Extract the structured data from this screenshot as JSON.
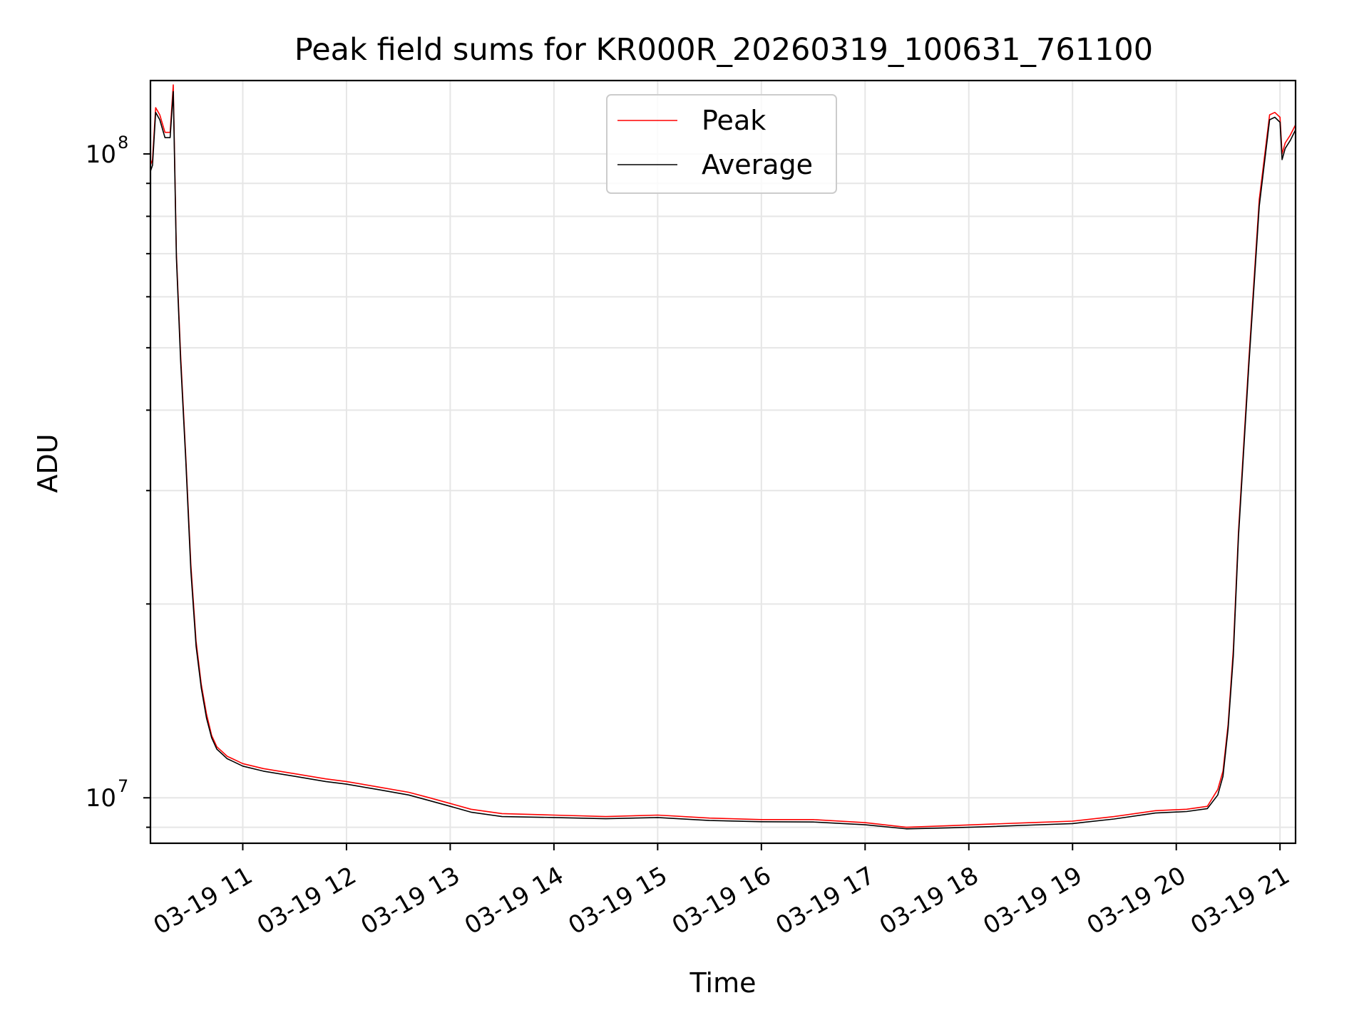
{
  "chart_data": {
    "type": "line",
    "title": "Peak field sums for KR000R_20260319_100631_761100",
    "xlabel": "Time",
    "ylabel": "ADU",
    "yscale": "log",
    "xlim_hours": [
      10.11,
      21.15
    ],
    "ylim": [
      8500000,
      130000000
    ],
    "grid": true,
    "legend_position": "upper-center",
    "x_ticks": [
      {
        "label": "03-19 11",
        "hour": 11
      },
      {
        "label": "03-19 12",
        "hour": 12
      },
      {
        "label": "03-19 13",
        "hour": 13
      },
      {
        "label": "03-19 14",
        "hour": 14
      },
      {
        "label": "03-19 15",
        "hour": 15
      },
      {
        "label": "03-19 16",
        "hour": 16
      },
      {
        "label": "03-19 17",
        "hour": 17
      },
      {
        "label": "03-19 18",
        "hour": 18
      },
      {
        "label": "03-19 19",
        "hour": 19
      },
      {
        "label": "03-19 20",
        "hour": 20
      },
      {
        "label": "03-19 21",
        "hour": 21
      }
    ],
    "y_ticks": [
      {
        "base": "10",
        "exp": "7",
        "value": 10000000
      },
      {
        "base": "10",
        "exp": "8",
        "value": 100000000
      }
    ],
    "series": [
      {
        "name": "Peak",
        "color": "#ff0000",
        "x": [
          10.11,
          10.13,
          10.16,
          10.2,
          10.25,
          10.3,
          10.33,
          10.36,
          10.4,
          10.45,
          10.5,
          10.55,
          10.6,
          10.65,
          10.7,
          10.75,
          10.8,
          10.85,
          10.9,
          10.95,
          11.0,
          11.2,
          11.5,
          11.8,
          12.0,
          12.3,
          12.6,
          12.8,
          13.0,
          13.2,
          13.5,
          14.0,
          14.5,
          15.0,
          15.5,
          16.0,
          16.5,
          17.0,
          17.4,
          17.8,
          18.2,
          18.6,
          19.0,
          19.4,
          19.8,
          20.1,
          20.3,
          20.4,
          20.45,
          20.5,
          20.55,
          20.6,
          20.7,
          20.8,
          20.9,
          20.95,
          21.0,
          21.02,
          21.05,
          21.1,
          21.15
        ],
        "y": [
          96000000,
          98000000,
          118000000,
          115000000,
          108000000,
          108000000,
          128000000,
          70000000,
          49000000,
          34000000,
          23000000,
          17500000,
          15000000,
          13500000,
          12500000,
          12000000,
          11800000,
          11600000,
          11500000,
          11400000,
          11300000,
          11100000,
          10900000,
          10700000,
          10600000,
          10400000,
          10200000,
          10000000,
          9800000,
          9600000,
          9450000,
          9400000,
          9350000,
          9400000,
          9300000,
          9250000,
          9250000,
          9150000,
          9000000,
          9050000,
          9100000,
          9150000,
          9200000,
          9350000,
          9550000,
          9600000,
          9700000,
          10300000,
          11000000,
          13000000,
          17000000,
          26000000,
          48000000,
          85000000,
          115000000,
          116000000,
          114000000,
          100000000,
          104000000,
          107000000,
          111000000
        ]
      },
      {
        "name": "Average",
        "color": "#000000",
        "x": [
          10.11,
          10.13,
          10.16,
          10.2,
          10.25,
          10.3,
          10.33,
          10.36,
          10.4,
          10.45,
          10.5,
          10.55,
          10.6,
          10.65,
          10.7,
          10.75,
          10.8,
          10.85,
          10.9,
          10.95,
          11.0,
          11.2,
          11.5,
          11.8,
          12.0,
          12.3,
          12.6,
          12.8,
          13.0,
          13.2,
          13.5,
          14.0,
          14.5,
          15.0,
          15.5,
          16.0,
          16.5,
          17.0,
          17.4,
          17.8,
          18.2,
          18.6,
          19.0,
          19.4,
          19.8,
          20.1,
          20.3,
          20.4,
          20.45,
          20.5,
          20.55,
          20.6,
          20.7,
          20.8,
          20.9,
          20.95,
          21.0,
          21.02,
          21.05,
          21.1,
          21.15
        ],
        "y": [
          94000000,
          96000000,
          116000000,
          113000000,
          106000000,
          106000000,
          125000000,
          69000000,
          48000000,
          33500000,
          22500000,
          17200000,
          14800000,
          13300000,
          12400000,
          11900000,
          11700000,
          11500000,
          11400000,
          11300000,
          11200000,
          11000000,
          10800000,
          10600000,
          10500000,
          10300000,
          10100000,
          9900000,
          9700000,
          9500000,
          9350000,
          9320000,
          9280000,
          9320000,
          9220000,
          9180000,
          9170000,
          9080000,
          8950000,
          8980000,
          9020000,
          9070000,
          9120000,
          9270000,
          9470000,
          9520000,
          9620000,
          10100000,
          10800000,
          12800000,
          16600000,
          25500000,
          47000000,
          83000000,
          113000000,
          114000000,
          112000000,
          98000000,
          102000000,
          105000000,
          109000000
        ]
      }
    ]
  }
}
